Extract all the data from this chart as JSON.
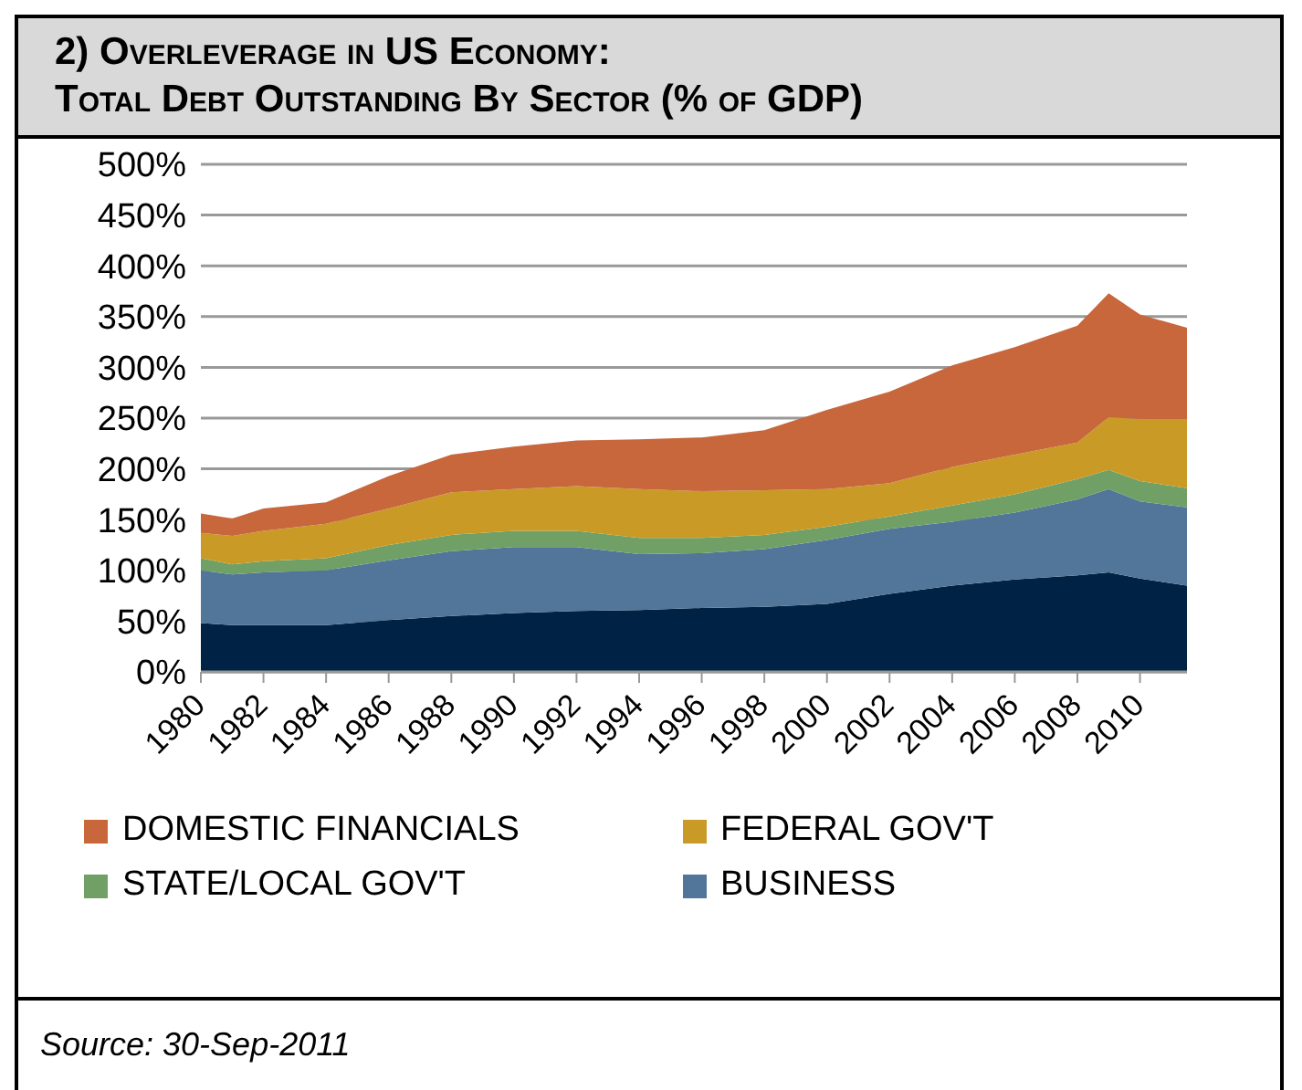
{
  "chart_data": {
    "type": "area",
    "stacked": true,
    "title": "2) Overleverage in US Economy:",
    "subtitle": "Total Debt Outstanding By Sector (% of GDP)",
    "x": [
      1980,
      1981,
      1982,
      1984,
      1986,
      1988,
      1990,
      1992,
      1994,
      1996,
      1998,
      2000,
      2002,
      2004,
      2006,
      2008,
      2009,
      2010,
      2011.5
    ],
    "series": [
      {
        "color": "#002244",
        "values": [
          48,
          46,
          46,
          46,
          51,
          55,
          58,
          60,
          61,
          63,
          64,
          67,
          77,
          85,
          91,
          95,
          98,
          92,
          85
        ]
      },
      {
        "name": "BUSINESS",
        "color": "#517699",
        "values": [
          52,
          50,
          52,
          54,
          59,
          64,
          65,
          63,
          55,
          54,
          57,
          63,
          64,
          63,
          66,
          75,
          82,
          76,
          77
        ]
      },
      {
        "name": "STATE/LOCAL GOV'T",
        "color": "#70a066",
        "values": [
          12,
          10,
          11,
          12,
          15,
          16,
          16,
          16,
          16,
          15,
          14,
          13,
          12,
          16,
          18,
          20,
          19,
          20,
          19
        ]
      },
      {
        "name": "FEDERAL GOV'T",
        "color": "#c99b26",
        "values": [
          25,
          28,
          30,
          34,
          36,
          42,
          41,
          44,
          48,
          46,
          44,
          37,
          33,
          38,
          39,
          36,
          52,
          61,
          68
        ]
      },
      {
        "name": "DOMESTIC FINANCIALS",
        "color": "#c8663c",
        "values": [
          19,
          17,
          22,
          21,
          32,
          37,
          42,
          45,
          49,
          53,
          59,
          78,
          90,
          100,
          106,
          115,
          122,
          103,
          90
        ]
      }
    ],
    "xlim": [
      1980,
      2011.5
    ],
    "xticks": [
      1980,
      1982,
      1984,
      1986,
      1988,
      1990,
      1992,
      1994,
      1996,
      1998,
      2000,
      2002,
      2004,
      2006,
      2008,
      2010
    ],
    "ylim": [
      0,
      500
    ],
    "yticks": [
      {
        "value": 0,
        "label": "0%"
      },
      {
        "value": 50,
        "label": "50%"
      },
      {
        "value": 100,
        "label": "100%"
      },
      {
        "value": 150,
        "label": "150%"
      },
      {
        "value": 200,
        "label": "200%"
      },
      {
        "value": 250,
        "label": "250%"
      },
      {
        "value": 300,
        "label": "300%"
      },
      {
        "value": 350,
        "label": "350%"
      },
      {
        "value": 400,
        "label": "400%"
      },
      {
        "value": 450,
        "label": "450%"
      },
      {
        "value": 500,
        "label": "500%"
      }
    ],
    "grid": "y",
    "legend": "bottom",
    "annotations": [
      "Source: 30-Sep-2011"
    ]
  }
}
